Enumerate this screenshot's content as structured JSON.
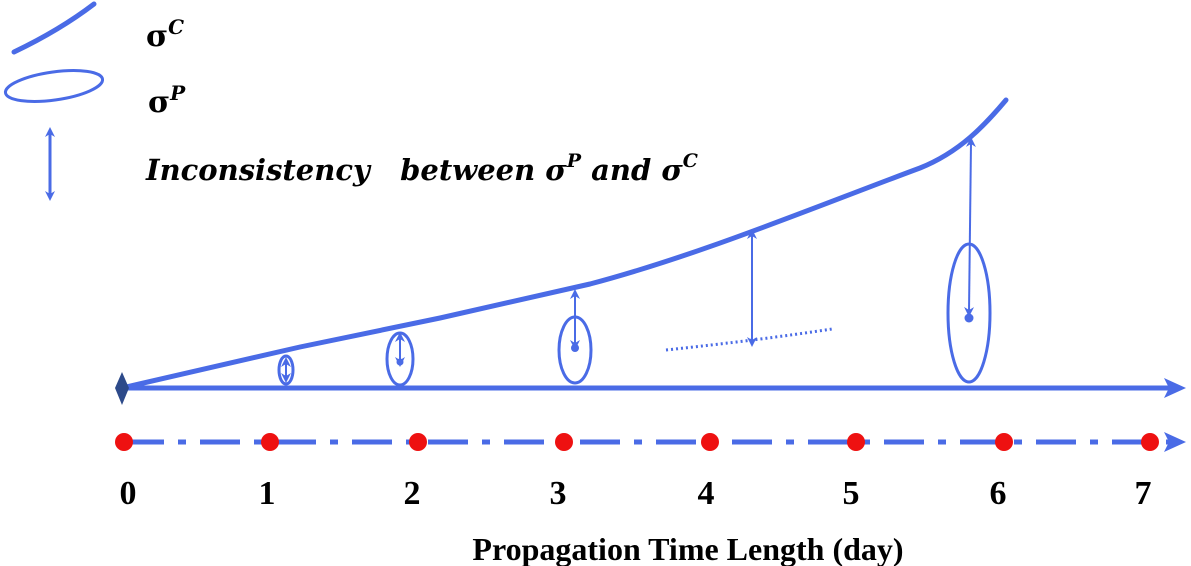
{
  "legend": {
    "curve_symbol": "σ",
    "curve_superscript": "C",
    "ellipse_symbol": "σ",
    "ellipse_superscript": "P",
    "arrow_text_prefix": "Inconsistency   between σ",
    "arrow_text_sup1": "P",
    "arrow_text_mid": " and σ",
    "arrow_text_sup2": "C"
  },
  "axis": {
    "ticks": [
      "0",
      "1",
      "2",
      "3",
      "4",
      "5",
      "6",
      "7"
    ],
    "title": "Propagation Time Length (day)"
  },
  "colors": {
    "line": "#4a6be6",
    "marker": "#ee1111",
    "origin": "#2d4a8a",
    "text": "#000000"
  }
}
